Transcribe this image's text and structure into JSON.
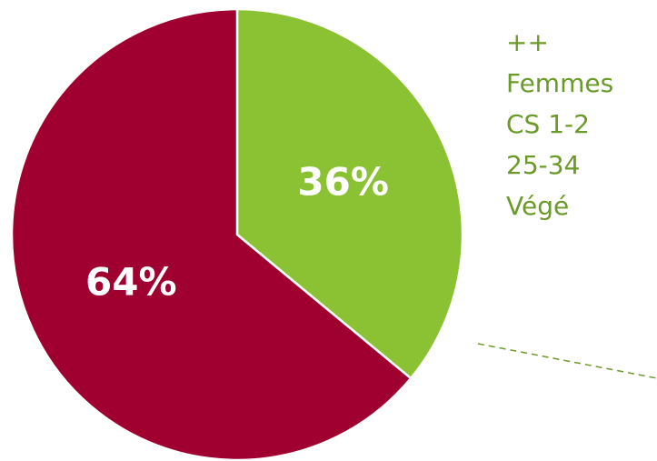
{
  "chart_data": {
    "type": "pie",
    "values": [
      36,
      64
    ],
    "value_labels": [
      "36%",
      "64%"
    ],
    "colors": [
      "#8bc234",
      "#a00030"
    ],
    "annotation": [
      "++",
      "Femmes",
      "CS 1-2",
      "25-34",
      "Végé"
    ],
    "annotation_color": "#6a9a28"
  }
}
